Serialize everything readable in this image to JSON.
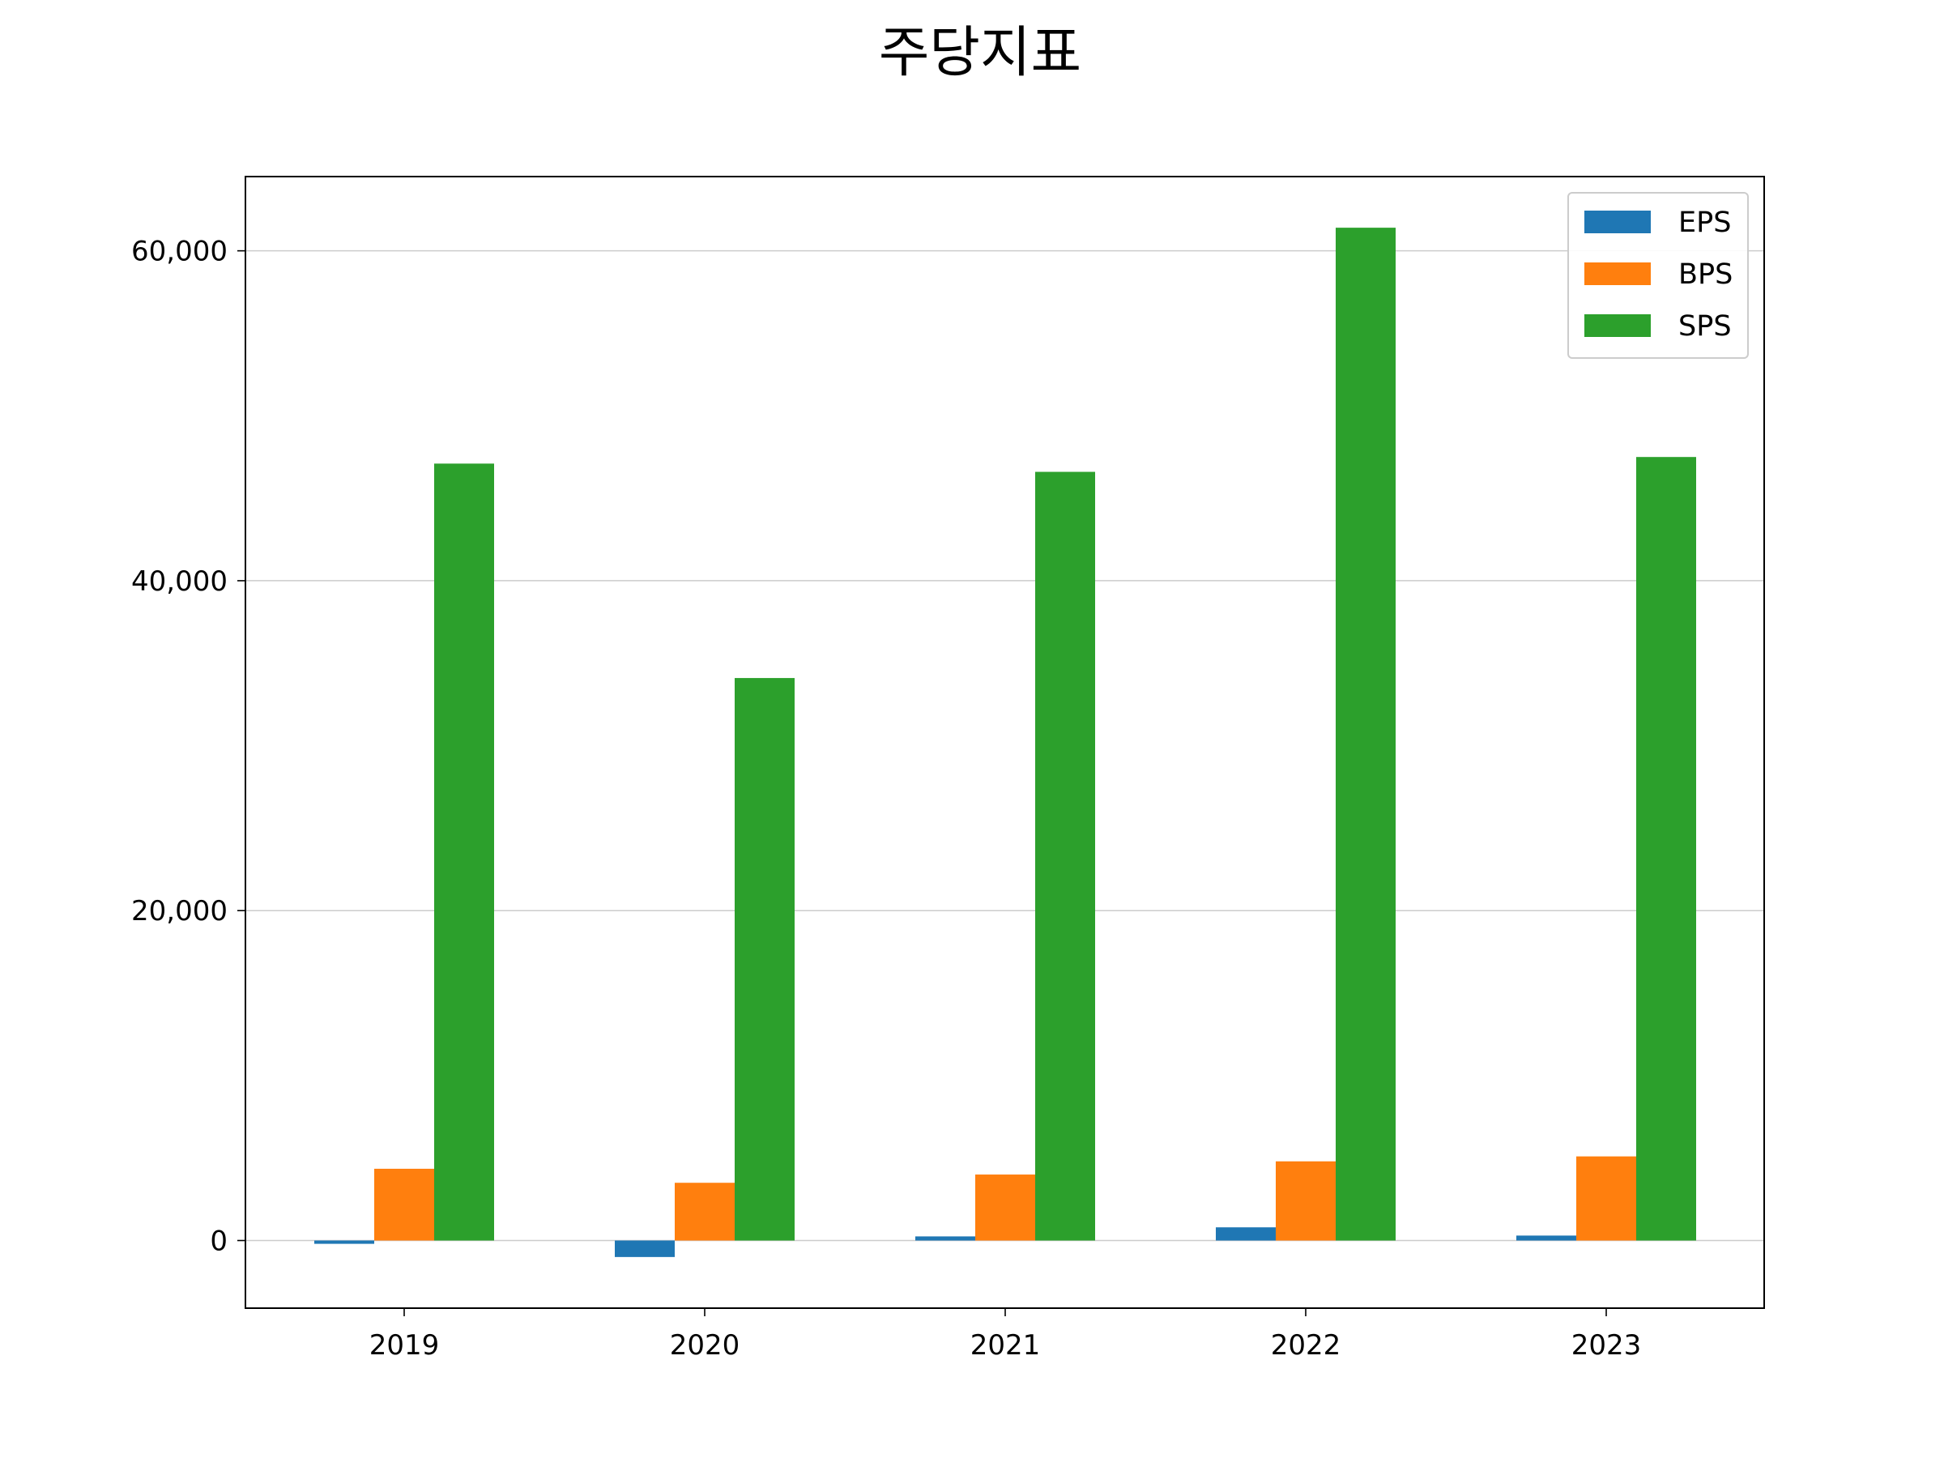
{
  "chart_data": {
    "type": "bar",
    "title": "주당지표",
    "xlabel": "",
    "ylabel": "",
    "categories": [
      "2019",
      "2020",
      "2021",
      "2022",
      "2023"
    ],
    "series": [
      {
        "name": "EPS",
        "color": "#1f77b4",
        "values": [
          -200,
          -1000,
          250,
          800,
          300
        ]
      },
      {
        "name": "BPS",
        "color": "#ff7f0e",
        "values": [
          4350,
          3500,
          4000,
          4800,
          5100
        ]
      },
      {
        "name": "SPS",
        "color": "#2ca02c",
        "values": [
          47100,
          34100,
          46600,
          61400,
          47500
        ]
      }
    ],
    "ylim": [
      -4100,
      64500
    ],
    "yticks": [
      0,
      20000,
      40000,
      60000
    ],
    "ytick_labels": [
      "0",
      "20,000",
      "40,000",
      "60,000"
    ],
    "grid": "horizontal",
    "legend": "top-right"
  }
}
